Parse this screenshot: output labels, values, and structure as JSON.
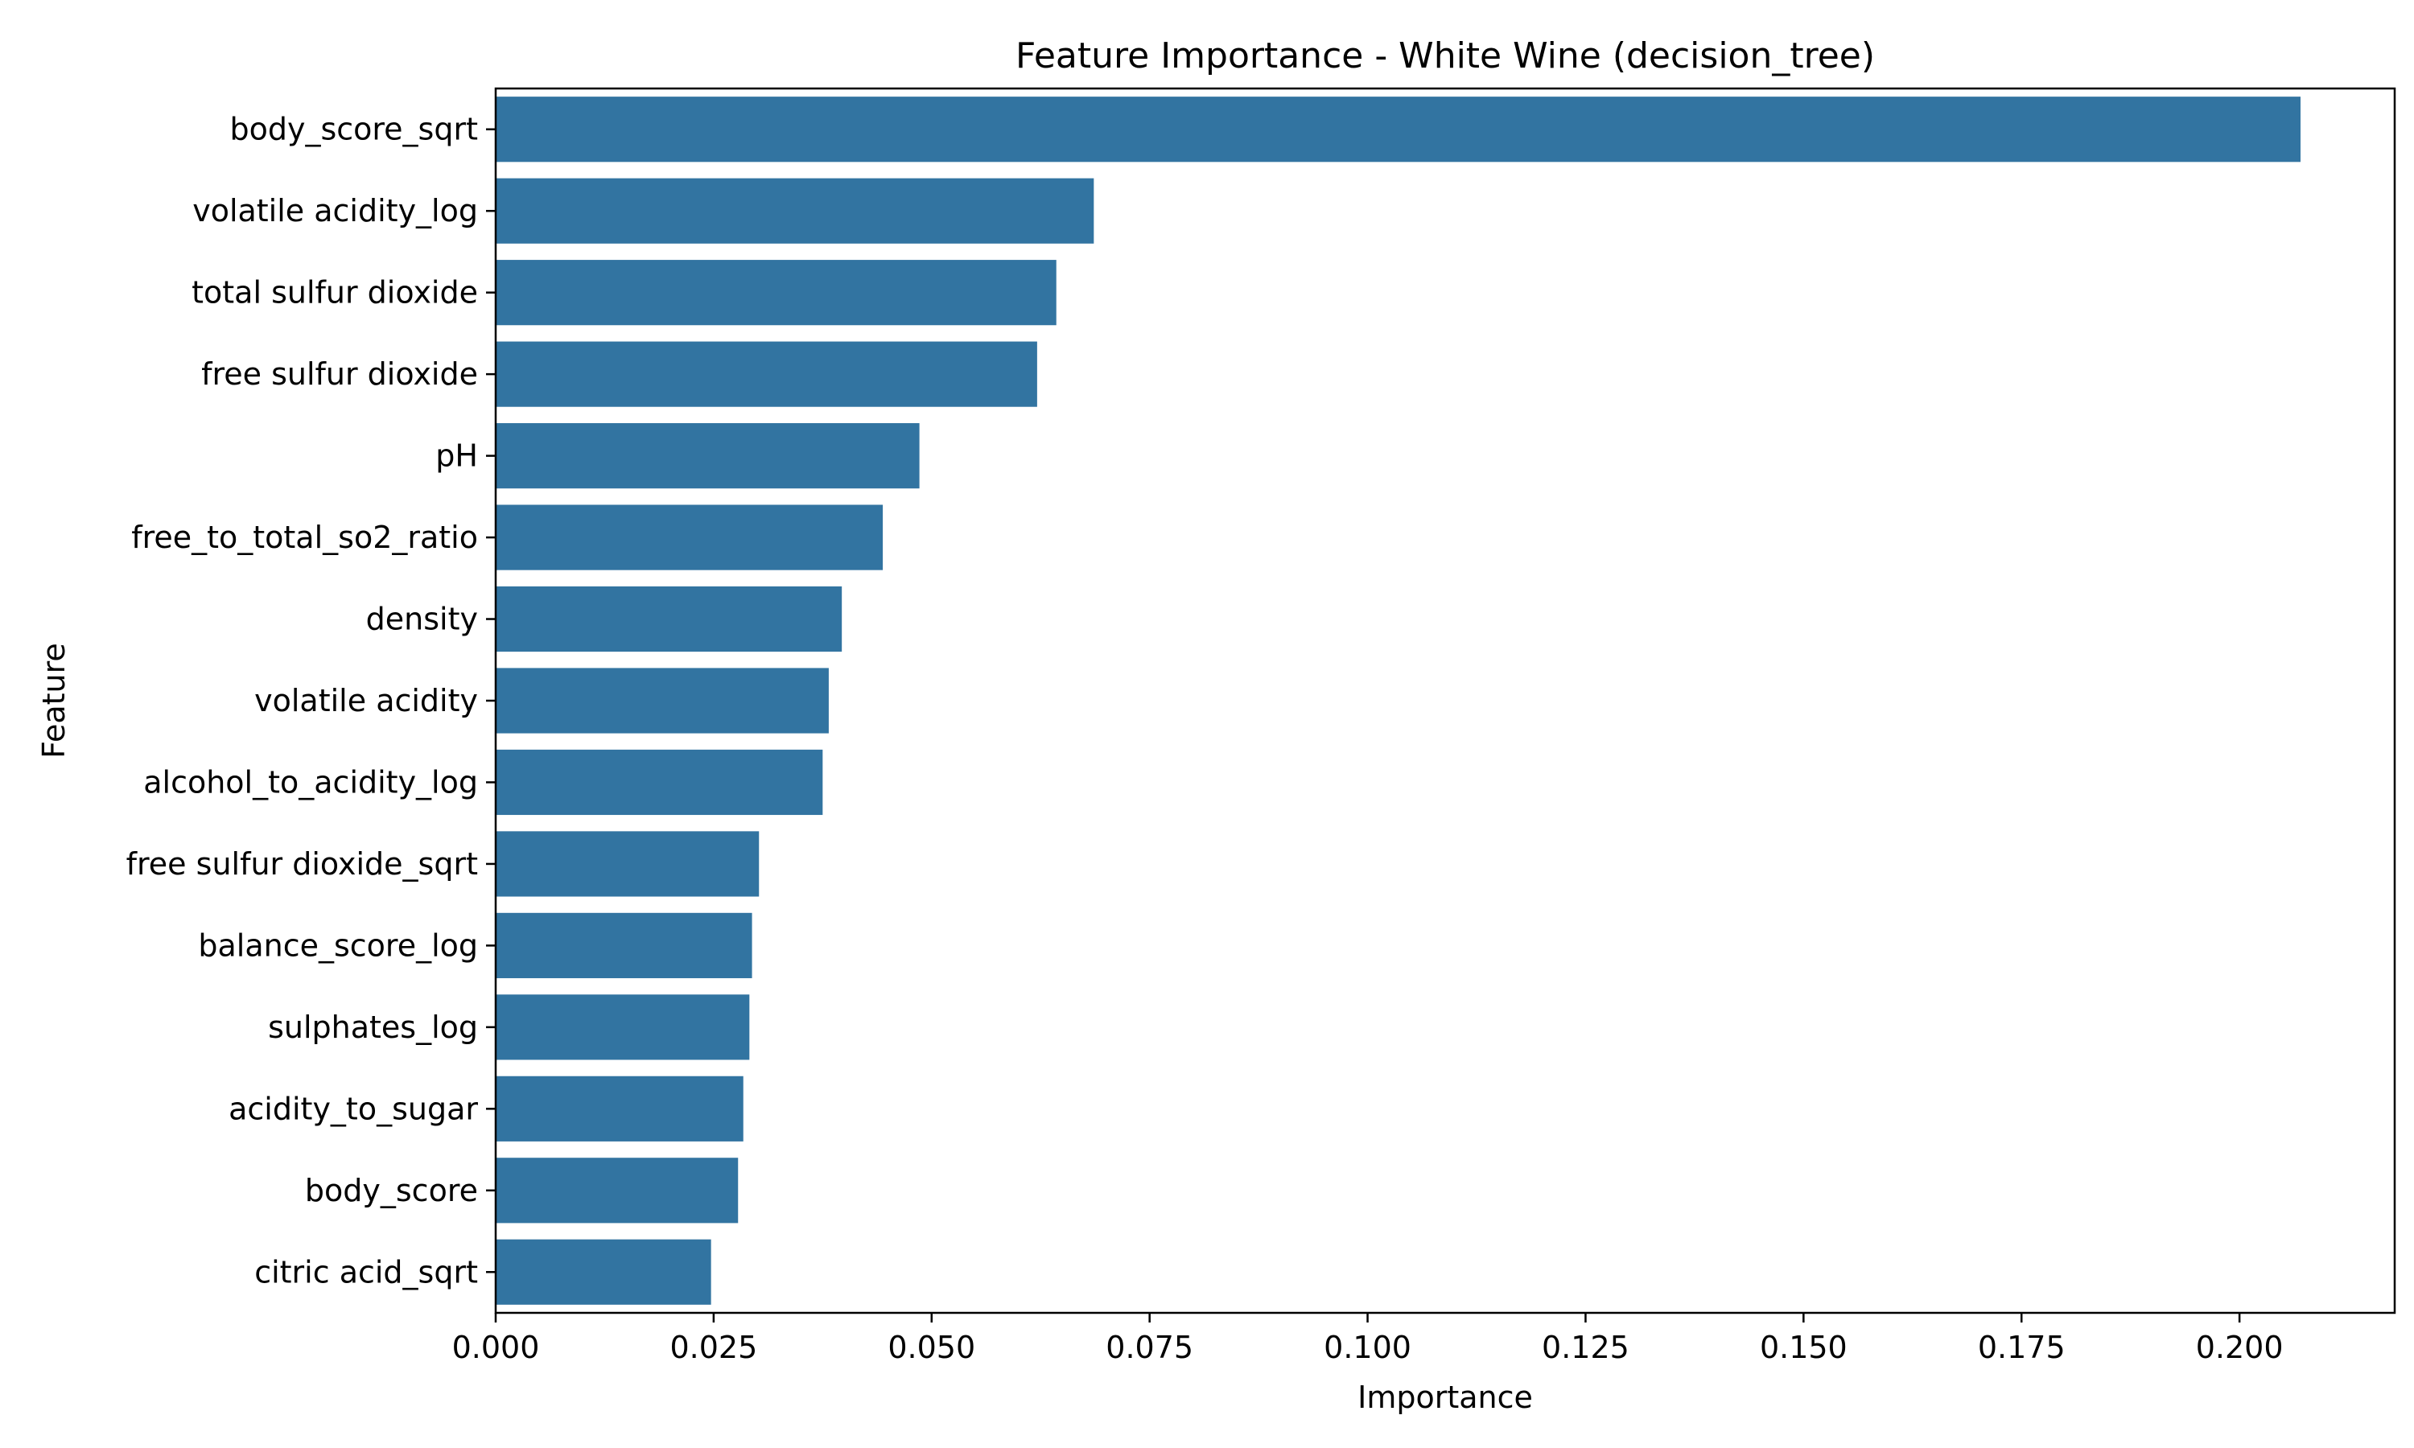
{
  "chart_data": {
    "type": "bar",
    "orientation": "horizontal",
    "title": "Feature Importance - White Wine (decision_tree)",
    "xlabel": "Importance",
    "ylabel": "Feature",
    "categories": [
      "body_score_sqrt",
      "volatile acidity_log",
      "total sulfur dioxide",
      "free sulfur dioxide",
      "pH",
      "free_to_total_so2_ratio",
      "density",
      "volatile acidity",
      "alcohol_to_acidity_log",
      "free sulfur dioxide_sqrt",
      "balance_score_log",
      "sulphates_log",
      "acidity_to_sugar",
      "body_score",
      "citric acid_sqrt"
    ],
    "values": [
      0.207,
      0.0686,
      0.0643,
      0.0621,
      0.0486,
      0.0444,
      0.0397,
      0.0382,
      0.0375,
      0.0302,
      0.0294,
      0.0291,
      0.0284,
      0.0278,
      0.0247
    ],
    "xlim": [
      0,
      0.2178
    ],
    "xticks": [
      0.0,
      0.025,
      0.05,
      0.075,
      0.1,
      0.125,
      0.15,
      0.175,
      0.2
    ],
    "xtick_labels": [
      "0.000",
      "0.025",
      "0.050",
      "0.075",
      "0.100",
      "0.125",
      "0.150",
      "0.175",
      "0.200"
    ],
    "bar_color": "#3274a1",
    "grid": false,
    "legend": "none"
  }
}
